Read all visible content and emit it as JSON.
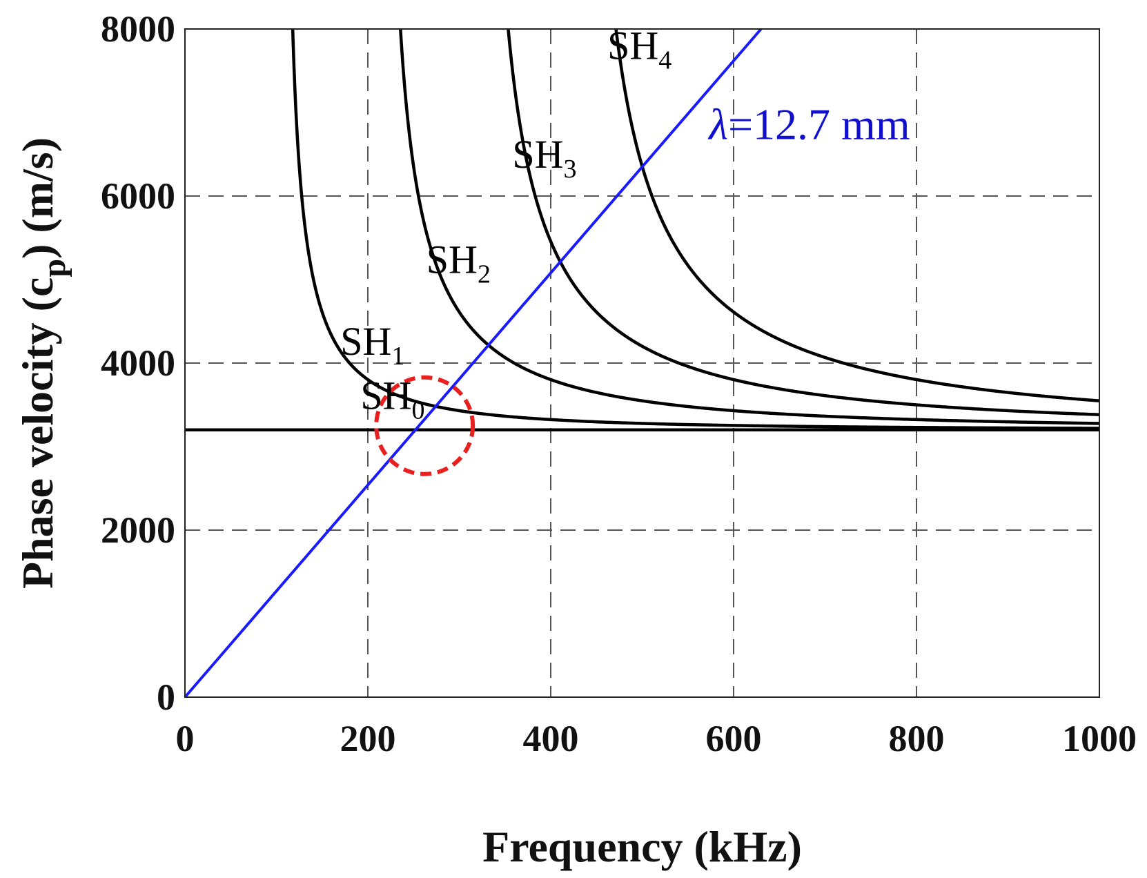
{
  "chart_data": {
    "type": "line",
    "title": "",
    "xlabel": "Frequency (kHz)",
    "ylabel_prefix": "Phase velocity (c",
    "ylabel_subscript": "p",
    "ylabel_suffix": ") (m/s)",
    "xlim": [
      0,
      1000
    ],
    "ylim": [
      0,
      8000
    ],
    "xticks": [
      0,
      200,
      400,
      600,
      800,
      1000
    ],
    "yticks": [
      0,
      2000,
      4000,
      6000,
      8000
    ],
    "xtick_labels": [
      "0",
      "200",
      "400",
      "600",
      "800",
      "1000"
    ],
    "ytick_labels": [
      "0",
      "2000",
      "4000",
      "6000",
      "8000"
    ],
    "grid": "dashed",
    "bulk_shear_velocity": 3200,
    "series": [
      {
        "name": "SH0",
        "base": "SH",
        "sub": "0",
        "mode": 0,
        "cutoff_khz": 0,
        "color": "#000000"
      },
      {
        "name": "SH1",
        "base": "SH",
        "sub": "1",
        "mode": 1,
        "cutoff_khz": 108,
        "color": "#000000"
      },
      {
        "name": "SH2",
        "base": "SH",
        "sub": "2",
        "mode": 2,
        "cutoff_khz": 216,
        "color": "#000000"
      },
      {
        "name": "SH3",
        "base": "SH",
        "sub": "3",
        "mode": 3,
        "cutoff_khz": 324,
        "color": "#000000"
      },
      {
        "name": "SH4",
        "base": "SH",
        "sub": "4",
        "mode": 4,
        "cutoff_khz": 432,
        "color": "#000000"
      }
    ],
    "wavelength_line": {
      "label_symbol": "λ",
      "label_text": "=12.7 mm",
      "wavelength_mm": 12.7,
      "x": [
        0,
        630
      ],
      "y": [
        0,
        8000
      ],
      "color": "#1a1aff"
    },
    "annotation": {
      "type": "dashed-circle",
      "center_khz": 262,
      "center_ms": 3250,
      "color": "#e82020"
    }
  }
}
